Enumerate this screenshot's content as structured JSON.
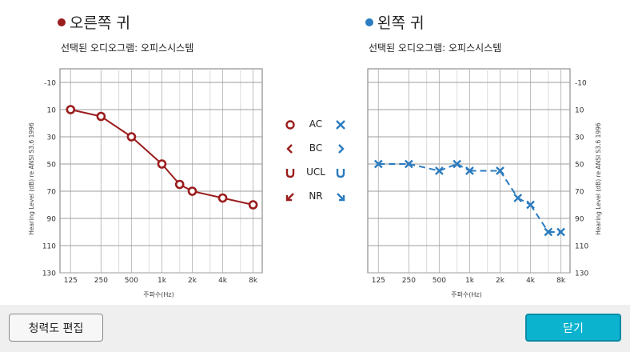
{
  "right_ear": {
    "title": "오른쪽 귀",
    "subtitle": "선택된 오디오그램: 오피스시스템",
    "color": "#9b1c1c"
  },
  "left_ear": {
    "title": "왼쪽 귀",
    "subtitle": "선택된 오디오그램: 오피스시스템",
    "color": "#2a7bbf"
  },
  "legend": {
    "items": [
      "AC",
      "BC",
      "UCL",
      "NR"
    ]
  },
  "buttons": {
    "edit_label": "청력도 편집",
    "close_label": "닫기"
  },
  "chart_data": [
    {
      "type": "line",
      "x_ticks": [
        "125",
        "250",
        "500",
        "1k",
        "2k",
        "4k",
        "8k"
      ],
      "y_ticks": [
        "-10",
        "10",
        "30",
        "50",
        "70",
        "90",
        "110",
        "130"
      ],
      "ylim": [
        -10,
        130
      ],
      "y_inverted": true,
      "x_scale": "log",
      "xlabel": "주파수(Hz)",
      "ylabel": "Hearing Level (dB) re ANSI S3.6 1996",
      "grid": true,
      "series": [
        {
          "marker": "circle",
          "color": "#9b1c1c",
          "x": [
            125,
            250,
            500,
            1000,
            1500,
            2000,
            4000,
            8000
          ],
          "y": [
            10,
            15,
            30,
            50,
            65,
            70,
            75,
            80
          ]
        }
      ]
    },
    {
      "type": "line",
      "x_ticks": [
        "125",
        "250",
        "500",
        "1k",
        "2k",
        "4k",
        "8k"
      ],
      "y_ticks": [
        "-10",
        "10",
        "30",
        "50",
        "70",
        "90",
        "110",
        "130"
      ],
      "ylim": [
        -10,
        130
      ],
      "y_inverted": true,
      "x_scale": "log",
      "xlabel": "주파수(Hz)",
      "ylabel": "Hearing Level (dB) re ANSI S3.6 1996",
      "grid": true,
      "series": [
        {
          "marker": "cross",
          "color": "#2a7bbf",
          "x": [
            125,
            250,
            500,
            750,
            1000,
            2000,
            3000,
            4000,
            6000,
            8000
          ],
          "y": [
            50,
            50,
            55,
            50,
            55,
            55,
            75,
            80,
            100,
            100
          ],
          "dashed_after_index": 3
        }
      ]
    }
  ]
}
